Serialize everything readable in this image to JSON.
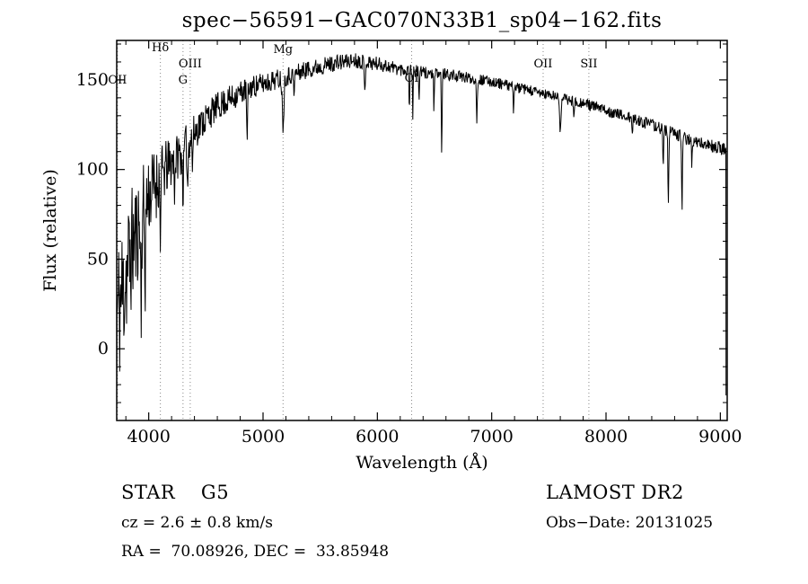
{
  "chart_data": {
    "type": "line",
    "title": "spec−56591−GAC070N33B1_sp04−162.fits",
    "xlabel": "Wavelength (Å)",
    "ylabel": "Flux (relative)",
    "xlim": [
      3720,
      9060
    ],
    "ylim": [
      -40,
      172
    ],
    "xticks": [
      4000,
      5000,
      6000,
      7000,
      8000,
      9000
    ],
    "yticks": [
      0,
      50,
      100,
      150
    ],
    "x_minor_step": 200,
    "y_minor_step": 10,
    "seed": 11,
    "sample_step": 4,
    "line_color": "#000000",
    "marker_line_color": "#888888",
    "grid": false,
    "legend": "none",
    "continuum": [
      [
        3720,
        18
      ],
      [
        3760,
        28
      ],
      [
        3800,
        42
      ],
      [
        3850,
        55
      ],
      [
        3900,
        66
      ],
      [
        3950,
        76
      ],
      [
        4000,
        86
      ],
      [
        4100,
        96
      ],
      [
        4200,
        104
      ],
      [
        4300,
        111
      ],
      [
        4400,
        121
      ],
      [
        4500,
        129
      ],
      [
        4600,
        135
      ],
      [
        4700,
        139
      ],
      [
        4800,
        143
      ],
      [
        4900,
        146
      ],
      [
        5000,
        148
      ],
      [
        5100,
        150
      ],
      [
        5200,
        152
      ],
      [
        5300,
        154
      ],
      [
        5400,
        156
      ],
      [
        5600,
        159
      ],
      [
        5800,
        161
      ],
      [
        6000,
        159
      ],
      [
        6200,
        156
      ],
      [
        6400,
        154
      ],
      [
        6600,
        153
      ],
      [
        6800,
        151
      ],
      [
        7000,
        149
      ],
      [
        7200,
        146
      ],
      [
        7400,
        143
      ],
      [
        7600,
        140
      ],
      [
        7800,
        137
      ],
      [
        8000,
        133
      ],
      [
        8200,
        129
      ],
      [
        8400,
        125
      ],
      [
        8600,
        120
      ],
      [
        8800,
        115
      ],
      [
        9000,
        112
      ],
      [
        9060,
        111
      ]
    ],
    "noise_amp": [
      [
        3720,
        46
      ],
      [
        3780,
        42
      ],
      [
        3850,
        36
      ],
      [
        3900,
        30
      ],
      [
        4000,
        24
      ],
      [
        4100,
        18
      ],
      [
        4200,
        14
      ],
      [
        4400,
        10
      ],
      [
        4600,
        8
      ],
      [
        4800,
        7
      ],
      [
        5000,
        6
      ],
      [
        5400,
        5
      ],
      [
        6000,
        4
      ],
      [
        6500,
        3.5
      ],
      [
        7000,
        3
      ],
      [
        7500,
        3
      ],
      [
        8000,
        3
      ],
      [
        8600,
        3.5
      ],
      [
        9060,
        3.5
      ]
    ],
    "absorption_features": [
      [
        3933,
        45,
        6
      ],
      [
        3968,
        40,
        6
      ],
      [
        4102,
        28,
        6
      ],
      [
        4227,
        15,
        5
      ],
      [
        4300,
        22,
        8
      ],
      [
        4340,
        25,
        6
      ],
      [
        4383,
        18,
        5
      ],
      [
        4861,
        30,
        6
      ],
      [
        5175,
        26,
        10
      ],
      [
        5270,
        12,
        6
      ],
      [
        5890,
        18,
        6
      ],
      [
        6280,
        20,
        4
      ],
      [
        6310,
        24,
        4
      ],
      [
        6365,
        14,
        4
      ],
      [
        6495,
        25,
        4
      ],
      [
        6563,
        42,
        5
      ],
      [
        6870,
        22,
        6
      ],
      [
        7190,
        12,
        5
      ],
      [
        7600,
        18,
        8
      ],
      [
        7720,
        10,
        5
      ],
      [
        8230,
        10,
        5
      ],
      [
        8500,
        20,
        5
      ],
      [
        8545,
        40,
        5
      ],
      [
        8665,
        45,
        5
      ],
      [
        8750,
        12,
        4
      ]
    ],
    "markers": [
      {
        "label": "OII",
        "x": 3727,
        "label_flux": 148
      },
      {
        "label": "Hδ",
        "x": 4102,
        "label_flux": 166
      },
      {
        "label": "G",
        "x": 4300,
        "label_flux": 148
      },
      {
        "label": "OIII",
        "x": 4363,
        "label_flux": 157
      },
      {
        "label": "Mg",
        "x": 5175,
        "label_flux": 165
      },
      {
        "label": "OI",
        "x": 6300,
        "label_flux": 149
      },
      {
        "label": "OII",
        "x": 7450,
        "label_flux": 157
      },
      {
        "label": "SII",
        "x": 7850,
        "label_flux": 157
      }
    ],
    "end_drop_flux": -26
  },
  "footer": {
    "class_line": "STAR    G5",
    "cz_line": "cz = 2.6 ± 0.8 km/s",
    "coords_line": "RA =  70.08926, DEC =  33.85948",
    "survey_line": "LAMOST DR2",
    "obsdate_line": "Obs−Date: 20131025"
  }
}
